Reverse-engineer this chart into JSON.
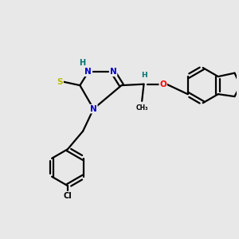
{
  "bg_color": "#e8e8e8",
  "bond_color": "#000000",
  "atom_colors": {
    "N": "#0000cc",
    "S": "#bbbb00",
    "O": "#ff0000",
    "Cl": "#000000",
    "H": "#007070",
    "C": "#000000"
  },
  "figsize": [
    3.0,
    3.0
  ],
  "dpi": 100,
  "xlim": [
    0,
    10
  ],
  "ylim": [
    0,
    10
  ]
}
